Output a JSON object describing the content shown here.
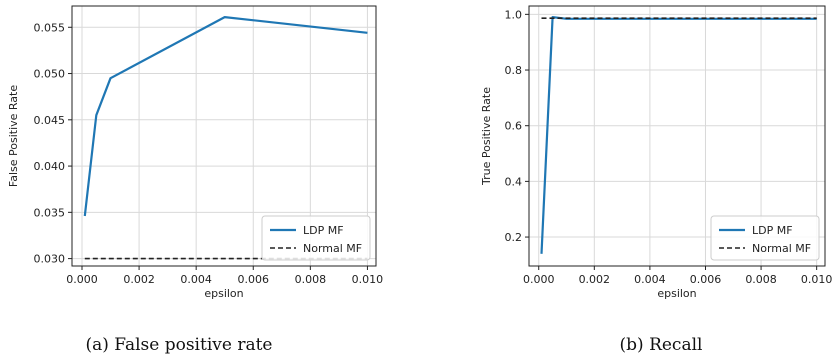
{
  "chart_data": [
    {
      "type": "line",
      "caption": "(a) False positive rate",
      "xlabel": "epsilon",
      "ylabel": "False Positive Rate",
      "xlim": [
        -0.00035,
        0.0103
      ],
      "ylim": [
        0.0292,
        0.0573
      ],
      "xticks": [
        0.0,
        0.002,
        0.004,
        0.006,
        0.008,
        0.01
      ],
      "xtick_labels": [
        "0.000",
        "0.002",
        "0.004",
        "0.006",
        "0.008",
        "0.010"
      ],
      "yticks": [
        0.03,
        0.035,
        0.04,
        0.045,
        0.05,
        0.055
      ],
      "ytick_labels": [
        "0.030",
        "0.035",
        "0.040",
        "0.045",
        "0.050",
        "0.055"
      ],
      "grid": true,
      "legend_position": "bottom-right",
      "series": [
        {
          "name": "LDP MF",
          "style": "solid",
          "color": "#1f77b4",
          "x": [
            0.0001,
            0.0005,
            0.001,
            0.005,
            0.01
          ],
          "y": [
            0.0346,
            0.0455,
            0.0495,
            0.0561,
            0.0544
          ]
        },
        {
          "name": "Normal MF",
          "style": "dashed",
          "color": "#222222",
          "x": [
            0.0001,
            0.01
          ],
          "y": [
            0.03,
            0.03
          ]
        }
      ]
    },
    {
      "type": "line",
      "caption": "(b) Recall",
      "xlabel": "epsilon",
      "ylabel": "True Positive Rate",
      "xlim": [
        -0.00035,
        0.0103
      ],
      "ylim": [
        0.096,
        1.03
      ],
      "xticks": [
        0.0,
        0.002,
        0.004,
        0.006,
        0.008,
        0.01
      ],
      "xtick_labels": [
        "0.000",
        "0.002",
        "0.004",
        "0.006",
        "0.008",
        "0.010"
      ],
      "yticks": [
        0.2,
        0.4,
        0.6,
        0.8,
        1.0
      ],
      "ytick_labels": [
        "0.2",
        "0.4",
        "0.6",
        "0.8",
        "1.0"
      ],
      "grid": true,
      "legend_position": "bottom-right",
      "series": [
        {
          "name": "LDP MF",
          "style": "solid",
          "color": "#1f77b4",
          "x": [
            0.0001,
            0.0005,
            0.001,
            0.005,
            0.01
          ],
          "y": [
            0.14,
            0.99,
            0.984,
            0.984,
            0.984
          ]
        },
        {
          "name": "Normal MF",
          "style": "dashed",
          "color": "#222222",
          "x": [
            0.0001,
            0.01
          ],
          "y": [
            0.986,
            0.986
          ]
        }
      ]
    }
  ]
}
